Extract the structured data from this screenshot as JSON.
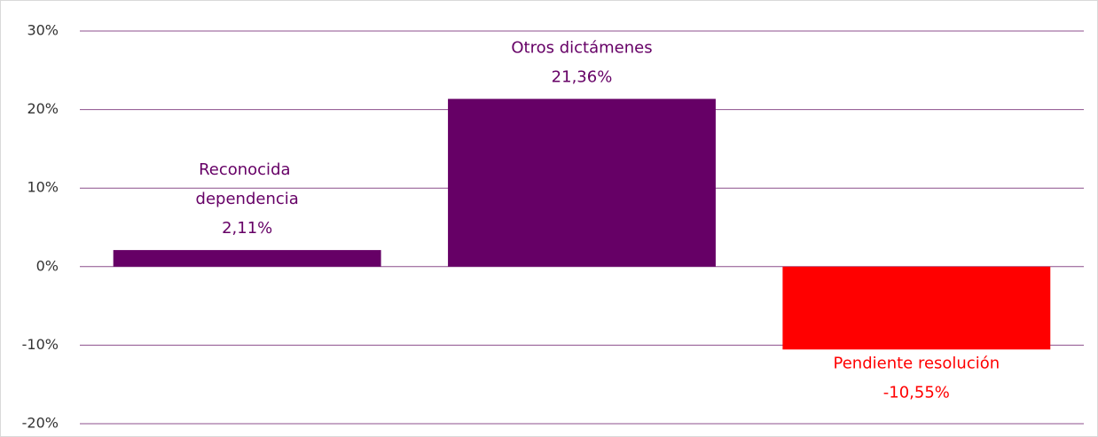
{
  "chart_data": {
    "type": "bar",
    "categories": [
      "Reconocida dependencia",
      "Otros dictámenes",
      "Pendiente resolución"
    ],
    "values": [
      2.11,
      21.36,
      -10.55
    ],
    "value_labels": [
      "2,11%",
      "21,36%",
      "-10,55%"
    ],
    "colors": [
      "#660066",
      "#660066",
      "#ff0000"
    ],
    "ylim": [
      -20,
      30
    ],
    "yticks": [
      {
        "value": -20,
        "label": "-20%"
      },
      {
        "value": -10,
        "label": "-10%"
      },
      {
        "value": 0,
        "label": "0%"
      },
      {
        "value": 10,
        "label": "10%"
      },
      {
        "value": 20,
        "label": "20%"
      },
      {
        "value": 30,
        "label": "30%"
      }
    ],
    "grid": true
  }
}
